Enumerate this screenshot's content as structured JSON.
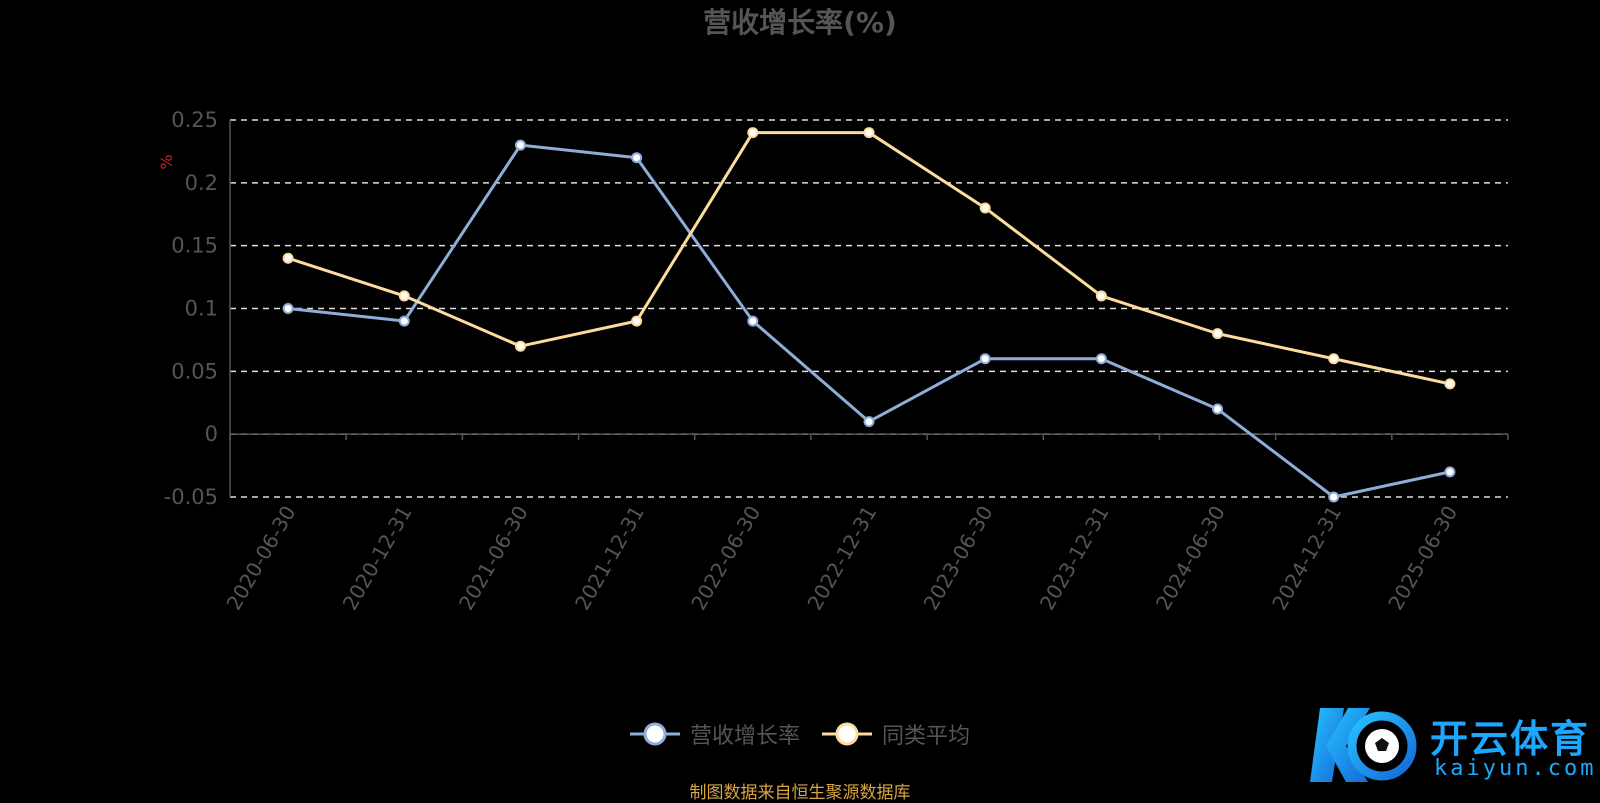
{
  "chart_data": {
    "type": "line",
    "title": "营收增长率(%)",
    "ylabel": "%",
    "xlabel": "",
    "categories": [
      "2020-06-30",
      "2020-12-31",
      "2021-06-30",
      "2021-12-31",
      "2022-06-30",
      "2022-12-31",
      "2023-06-30",
      "2023-12-31",
      "2024-06-30",
      "2024-12-31",
      "2025-06-30"
    ],
    "ylim": [
      -0.05,
      0.25
    ],
    "yticks": [
      "0.25",
      "0.2",
      "0.15",
      "0.1",
      "0.05",
      "0",
      "-0.05"
    ],
    "grid": true,
    "legend_position": "bottom",
    "series": [
      {
        "name": "营收增长率",
        "color": "#8fadd8",
        "values": [
          0.1,
          0.09,
          0.23,
          0.22,
          0.09,
          0.01,
          0.06,
          0.06,
          0.02,
          -0.05,
          -0.03
        ]
      },
      {
        "name": "同类平均",
        "color": "#fcdc9c",
        "values": [
          0.14,
          0.11,
          0.07,
          0.09,
          0.24,
          0.24,
          0.18,
          0.11,
          0.08,
          0.06,
          0.04
        ]
      }
    ]
  },
  "footer": {
    "source": "制图数据来自恒生聚源数据库"
  },
  "logo": {
    "name": "开云体育",
    "domain": "kaiyun.com"
  }
}
